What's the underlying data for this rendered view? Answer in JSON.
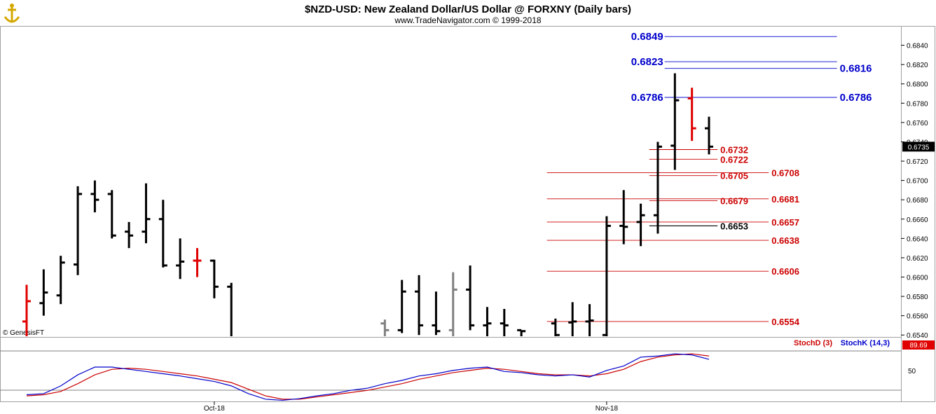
{
  "header": {
    "title": "$NZD-USD:  New Zealand Dollar/US Dollar @ FORXNY  (Daily bars)",
    "subtitle": "www.TradeNavigator.com © 1999-2018",
    "logo_icon": "anchor-icon",
    "watermark": "© GenesisFT"
  },
  "colors": {
    "up_bar": "#000000",
    "down_bar": "#000000",
    "highlight_bar": "#e00000",
    "gray_bar": "#808080",
    "resistance": "#0000cc",
    "support": "#cc0000",
    "stoch_k": "#0000cc",
    "stoch_d": "#cc0000"
  },
  "chart_data": [
    {
      "type": "ohlc",
      "ylim": [
        0.6538,
        0.686
      ],
      "yticks": [
        "0.6840",
        "0.6820",
        "0.6800",
        "0.6780",
        "0.6760",
        "0.6740",
        "0.6720",
        "0.6700",
        "0.6680",
        "0.6660",
        "0.6640",
        "0.6620",
        "0.6600",
        "0.6580",
        "0.6560",
        "0.6540"
      ],
      "ytick_values": [
        0.684,
        0.682,
        0.68,
        0.678,
        0.676,
        0.674,
        0.672,
        0.67,
        0.668,
        0.666,
        0.664,
        0.662,
        0.66,
        0.658,
        0.656,
        0.654
      ],
      "xticks": [
        {
          "label": "Oct-18",
          "bar": 11
        },
        {
          "label": "Nov-18",
          "bar": 34
        }
      ],
      "last_price": "0.6735",
      "bars": [
        {
          "i": 0,
          "o": 0.6554,
          "h": 0.6592,
          "l": 0.652,
          "c": 0.6575,
          "k": "red"
        },
        {
          "i": 1,
          "o": 0.6573,
          "h": 0.6608,
          "l": 0.656,
          "c": 0.6584,
          "k": "up"
        },
        {
          "i": 2,
          "o": 0.6581,
          "h": 0.6622,
          "l": 0.6572,
          "c": 0.6615,
          "k": "up"
        },
        {
          "i": 3,
          "o": 0.6613,
          "h": 0.6694,
          "l": 0.6602,
          "c": 0.6686,
          "k": "up"
        },
        {
          "i": 4,
          "o": 0.6686,
          "h": 0.67,
          "l": 0.6667,
          "c": 0.668,
          "k": "down"
        },
        {
          "i": 5,
          "o": 0.6686,
          "h": 0.669,
          "l": 0.664,
          "c": 0.6643,
          "k": "down"
        },
        {
          "i": 6,
          "o": 0.6647,
          "h": 0.6657,
          "l": 0.663,
          "c": 0.6643,
          "k": "down"
        },
        {
          "i": 7,
          "o": 0.6647,
          "h": 0.6697,
          "l": 0.6635,
          "c": 0.666,
          "k": "up"
        },
        {
          "i": 8,
          "o": 0.666,
          "h": 0.668,
          "l": 0.661,
          "c": 0.6612,
          "k": "down"
        },
        {
          "i": 9,
          "o": 0.6612,
          "h": 0.664,
          "l": 0.6598,
          "c": 0.6616,
          "k": "up"
        },
        {
          "i": 10,
          "o": 0.6617,
          "h": 0.663,
          "l": 0.66,
          "c": 0.6617,
          "k": "red"
        },
        {
          "i": 11,
          "o": 0.6617,
          "h": 0.6618,
          "l": 0.6578,
          "c": 0.659,
          "k": "down"
        },
        {
          "i": 12,
          "o": 0.659,
          "h": 0.6594,
          "l": 0.651,
          "c": 0.652,
          "k": "down"
        },
        {
          "i": 21,
          "o": 0.6552,
          "h": 0.6556,
          "l": 0.652,
          "c": 0.6545,
          "k": "gray"
        },
        {
          "i": 22,
          "o": 0.6545,
          "h": 0.6597,
          "l": 0.6542,
          "c": 0.6585,
          "k": "up"
        },
        {
          "i": 23,
          "o": 0.6585,
          "h": 0.6602,
          "l": 0.654,
          "c": 0.655,
          "k": "down"
        },
        {
          "i": 24,
          "o": 0.655,
          "h": 0.6585,
          "l": 0.654,
          "c": 0.6544,
          "k": "down"
        },
        {
          "i": 25,
          "o": 0.6545,
          "h": 0.6605,
          "l": 0.6535,
          "c": 0.6587,
          "k": "gray"
        },
        {
          "i": 26,
          "o": 0.6587,
          "h": 0.6612,
          "l": 0.6545,
          "c": 0.655,
          "k": "down"
        },
        {
          "i": 27,
          "o": 0.655,
          "h": 0.6569,
          "l": 0.652,
          "c": 0.6552,
          "k": "up"
        },
        {
          "i": 28,
          "o": 0.6552,
          "h": 0.6567,
          "l": 0.652,
          "c": 0.655,
          "k": "down"
        },
        {
          "i": 29,
          "o": 0.6545,
          "h": 0.6545,
          "l": 0.652,
          "c": 0.6544,
          "k": "down"
        },
        {
          "i": 31,
          "o": 0.6552,
          "h": 0.6557,
          "l": 0.653,
          "c": 0.654,
          "k": "down"
        },
        {
          "i": 32,
          "o": 0.6553,
          "h": 0.6574,
          "l": 0.6532,
          "c": 0.6554,
          "k": "up"
        },
        {
          "i": 33,
          "o": 0.6554,
          "h": 0.6572,
          "l": 0.653,
          "c": 0.6555,
          "k": "up"
        },
        {
          "i": 34,
          "o": 0.654,
          "h": 0.6663,
          "l": 0.653,
          "c": 0.6653,
          "k": "up"
        },
        {
          "i": 35,
          "o": 0.6653,
          "h": 0.669,
          "l": 0.6634,
          "c": 0.6652,
          "k": "down"
        },
        {
          "i": 36,
          "o": 0.6657,
          "h": 0.6676,
          "l": 0.6632,
          "c": 0.6664,
          "k": "up"
        },
        {
          "i": 37,
          "o": 0.6664,
          "h": 0.674,
          "l": 0.6645,
          "c": 0.6735,
          "k": "up"
        },
        {
          "i": 38,
          "o": 0.6736,
          "h": 0.6811,
          "l": 0.6711,
          "c": 0.6783,
          "k": "up"
        },
        {
          "i": 39,
          "o": 0.6785,
          "h": 0.6796,
          "l": 0.6741,
          "c": 0.6754,
          "k": "red"
        },
        {
          "i": 40,
          "o": 0.6754,
          "h": 0.6766,
          "l": 0.6727,
          "c": 0.6735,
          "k": "down"
        }
      ],
      "levels": [
        {
          "value": 0.6849,
          "label": "0.6849",
          "color": "blue",
          "x0": 0.6849,
          "from": 37.4,
          "to": 47.5,
          "side": "left"
        },
        {
          "value": 0.6823,
          "label": "0.6823",
          "color": "blue",
          "from": 37.4,
          "to": 47.5,
          "side": "left"
        },
        {
          "value": 0.6816,
          "label": "0.6816",
          "color": "blue",
          "from": 37.4,
          "to": 47.5,
          "side": "right"
        },
        {
          "value": 0.6786,
          "label": "0.6786",
          "color": "blue",
          "from": 37.4,
          "to": 47.5,
          "side": "left"
        },
        {
          "value": 0.6786,
          "label": "0.6786",
          "color": "blue",
          "from": 37.4,
          "to": 47.5,
          "side": "right"
        },
        {
          "value": 0.6732,
          "label": "0.6732",
          "color": "red",
          "from": 36.5,
          "to": 40.5,
          "side": "right"
        },
        {
          "value": 0.6722,
          "label": "0.6722",
          "color": "red",
          "from": 36.5,
          "to": 40.5,
          "side": "right"
        },
        {
          "value": 0.6708,
          "label": "0.6708",
          "color": "red",
          "from": 30.5,
          "to": 43.5,
          "side": "right"
        },
        {
          "value": 0.6705,
          "label": "0.6705",
          "color": "red",
          "from": 36.5,
          "to": 40.5,
          "side": "right"
        },
        {
          "value": 0.6681,
          "label": "0.6681",
          "color": "red",
          "from": 30.5,
          "to": 43.5,
          "side": "right"
        },
        {
          "value": 0.6679,
          "label": "0.6679",
          "color": "red",
          "from": 36.5,
          "to": 40.5,
          "side": "right"
        },
        {
          "value": 0.6657,
          "label": "0.6657",
          "color": "red",
          "from": 30.5,
          "to": 43.5,
          "side": "right"
        },
        {
          "value": 0.6653,
          "label": "0.6653",
          "color": "black",
          "from": 36.5,
          "to": 40.5,
          "side": "right"
        },
        {
          "value": 0.6638,
          "label": "0.6638",
          "color": "red",
          "from": 30.5,
          "to": 43.5,
          "side": "right"
        },
        {
          "value": 0.6606,
          "label": "0.6606",
          "color": "red",
          "from": 30.5,
          "to": 43.5,
          "side": "right"
        },
        {
          "value": 0.6554,
          "label": "0.6554",
          "color": "red",
          "from": 30.5,
          "to": 43.5,
          "side": "right"
        }
      ]
    },
    {
      "type": "line",
      "title": "",
      "legend": [
        "StochD (3)",
        "StochK (14,3)"
      ],
      "ylim": [
        0,
        100
      ],
      "yticks": [
        "50"
      ],
      "last_value": "89.69",
      "series": [
        {
          "name": "StochK (14,3)",
          "color": "blue",
          "x": [
            0,
            1,
            2,
            3,
            4,
            5,
            6,
            7,
            8,
            9,
            10,
            11,
            12,
            13,
            14,
            15,
            16,
            17,
            18,
            19,
            20,
            21,
            22,
            23,
            24,
            25,
            26,
            27,
            28,
            29,
            30,
            31,
            32,
            33,
            34,
            35,
            36,
            37,
            38,
            39,
            40
          ],
          "values": [
            12,
            14,
            28,
            48,
            62,
            62,
            58,
            54,
            50,
            46,
            41,
            36,
            28,
            14,
            4,
            2,
            5,
            10,
            14,
            20,
            24,
            32,
            38,
            46,
            50,
            56,
            60,
            62,
            54,
            52,
            48,
            46,
            48,
            44,
            56,
            64,
            80,
            82,
            86,
            84,
            76
          ]
        },
        {
          "name": "StochD (3)",
          "color": "red",
          "x": [
            0,
            1,
            2,
            3,
            4,
            5,
            6,
            7,
            8,
            9,
            10,
            11,
            12,
            13,
            14,
            15,
            16,
            17,
            18,
            19,
            20,
            21,
            22,
            23,
            24,
            25,
            26,
            27,
            28,
            29,
            30,
            31,
            32,
            33,
            34,
            35,
            36,
            37,
            38,
            39,
            40
          ],
          "values": [
            10,
            12,
            18,
            32,
            48,
            58,
            60,
            58,
            54,
            50,
            46,
            40,
            34,
            22,
            10,
            4,
            4,
            8,
            12,
            16,
            20,
            26,
            32,
            40,
            46,
            52,
            56,
            60,
            58,
            54,
            50,
            48,
            48,
            46,
            50,
            58,
            72,
            80,
            84,
            86,
            82
          ]
        }
      ]
    }
  ]
}
